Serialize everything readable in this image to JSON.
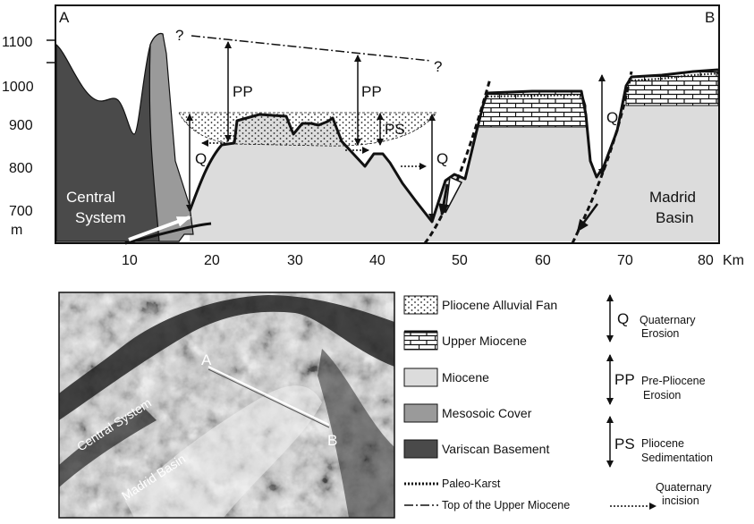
{
  "section": {
    "end_left": "A",
    "end_right": "B",
    "y_ticks": [
      "1100",
      "1000",
      "900",
      "800",
      "700"
    ],
    "y_unit": "m",
    "x_ticks": [
      "10",
      "20",
      "30",
      "40",
      "50",
      "60",
      "70",
      "80"
    ],
    "x_unit": "Km",
    "question_left": "?",
    "question_right": "?",
    "labels": {
      "pp_1": "PP",
      "pp_2": "PP",
      "ps": "PS",
      "q_1": "Q",
      "q_2": "Q",
      "q_3": "Q",
      "central_system_line1": "Central",
      "central_system_line2": "System",
      "madrid_basin_line1": "Madrid",
      "madrid_basin_line2": "Basin"
    }
  },
  "map": {
    "central_system": "Central System",
    "madrid_basin": "Madrid Basin",
    "point_a": "A",
    "point_b": "B"
  },
  "legend": {
    "units": [
      {
        "label": "Pliocene Alluvial Fan"
      },
      {
        "label": "Upper Miocene"
      },
      {
        "label": "Miocene"
      },
      {
        "label": "Mesosoic Cover"
      },
      {
        "label": "Variscan Basement"
      }
    ],
    "lines": [
      {
        "label": "Paleo-Karst"
      },
      {
        "label": "Top of the Upper Miocene"
      }
    ],
    "symbols": [
      {
        "code": "Q",
        "line1": "Quaternary",
        "line2": "Erosion"
      },
      {
        "code": "PP",
        "line1": "Pre-Pliocene",
        "line2": "Erosion"
      },
      {
        "code": "PS",
        "line1": "Pliocene",
        "line2": "Sedimentation"
      }
    ],
    "incision": {
      "line1": "Quaternary",
      "line2": "incision"
    }
  },
  "colors": {
    "miocene": "#dcdcdc",
    "mesozoic": "#9a9a9a",
    "variscan": "#4a4a4a",
    "outline": "#111111"
  }
}
